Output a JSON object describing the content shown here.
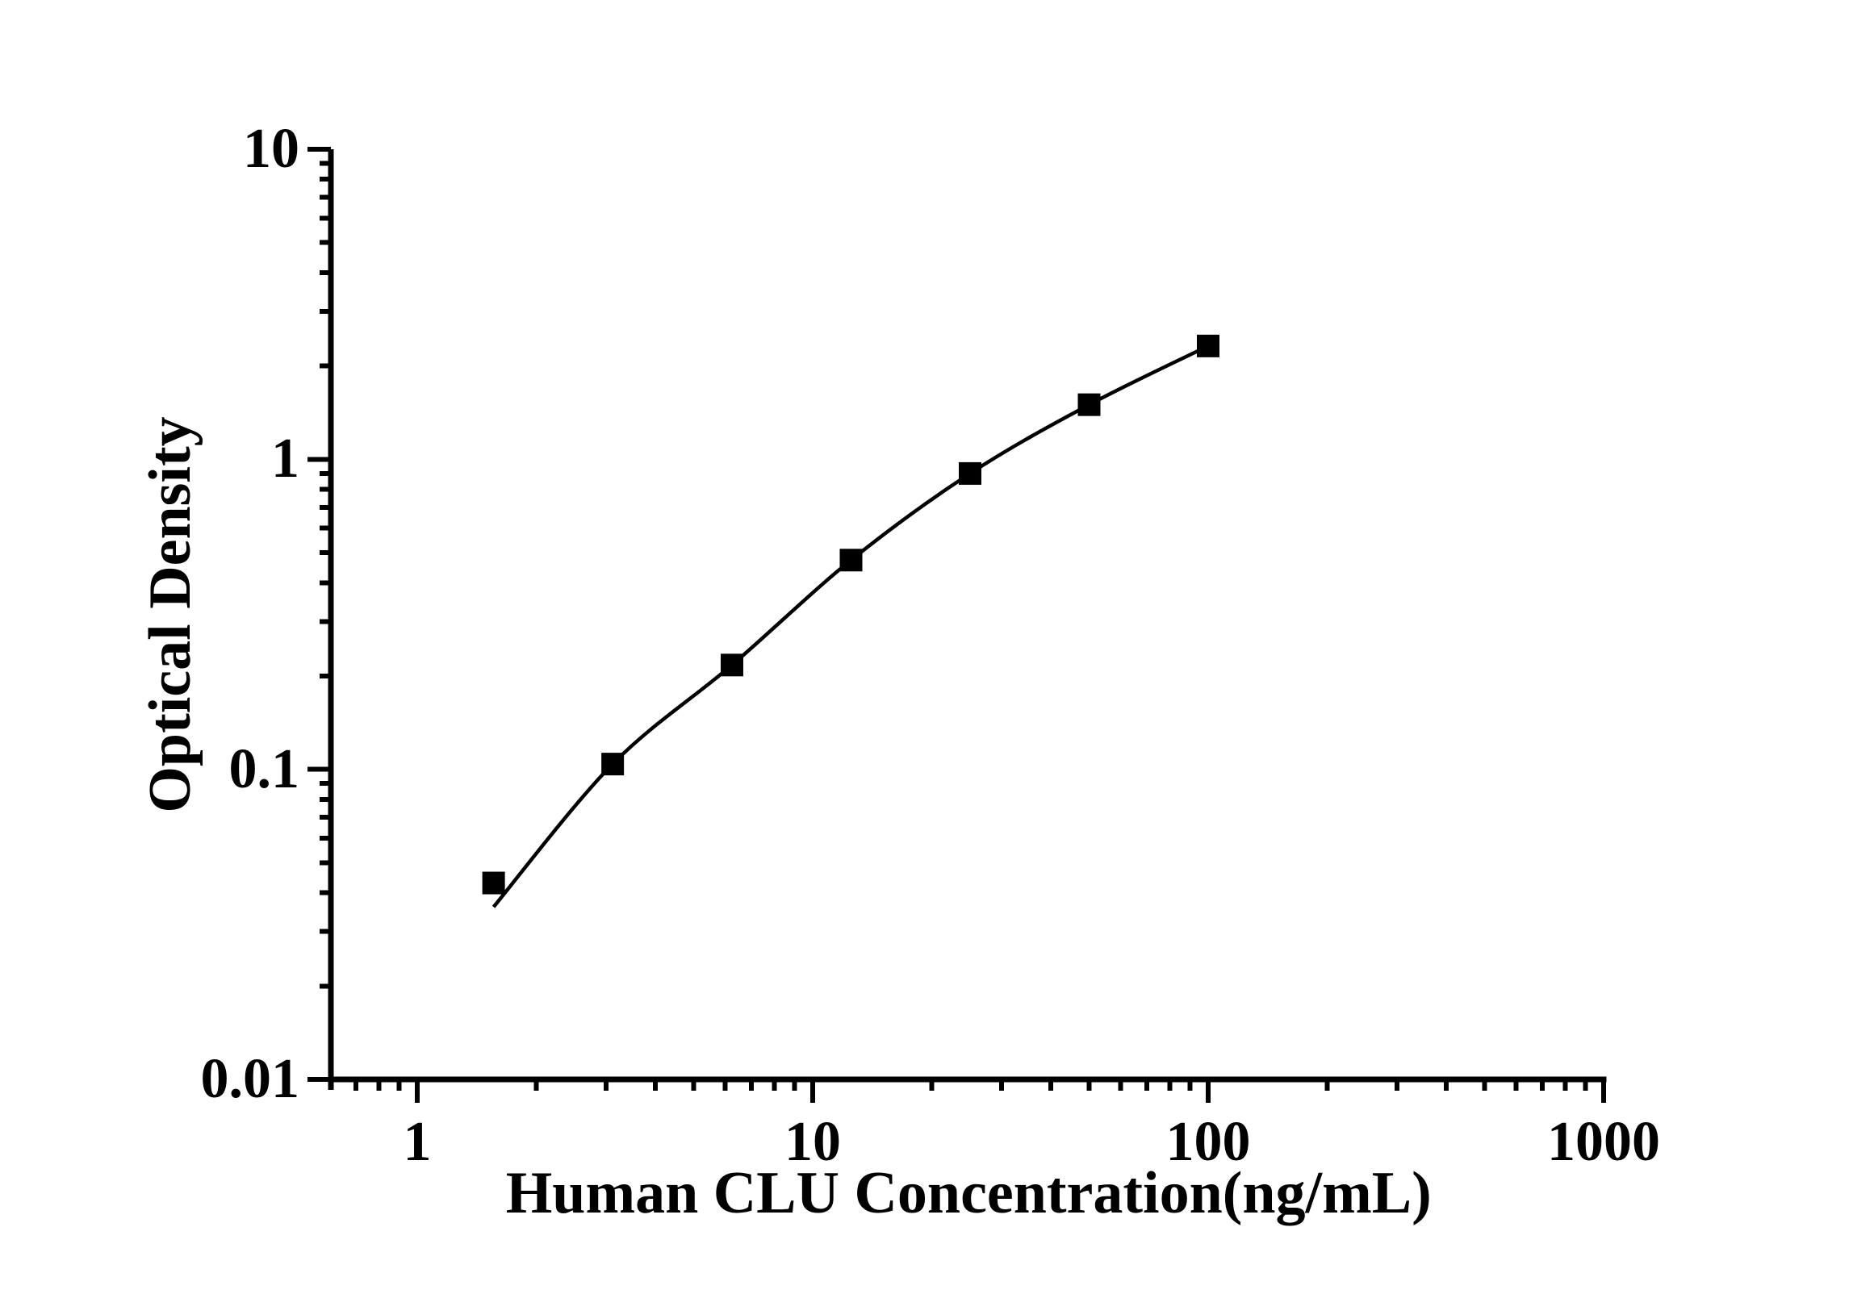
{
  "chart_data": {
    "type": "scatter",
    "title": "",
    "xlabel": "Human CLU Concentration(ng/mL)",
    "ylabel": "Optical Density",
    "x_scale": "log",
    "y_scale": "log",
    "xlim": [
      0.61,
      1000
    ],
    "ylim": [
      0.01,
      10
    ],
    "grid": false,
    "legend": "none",
    "x_ticks": [
      {
        "value": 1,
        "label": "1"
      },
      {
        "value": 10,
        "label": "10"
      },
      {
        "value": 100,
        "label": "100"
      },
      {
        "value": 1000,
        "label": "1000"
      }
    ],
    "y_ticks": [
      {
        "value": 0.01,
        "label": "0.01"
      },
      {
        "value": 0.1,
        "label": "0.1"
      },
      {
        "value": 1,
        "label": "1"
      },
      {
        "value": 10,
        "label": "10"
      }
    ],
    "series": [
      {
        "name": "standard-curve",
        "marker": "filled-square",
        "line": "smooth-fit",
        "points": [
          {
            "x": 1.56,
            "y": 0.043
          },
          {
            "x": 3.12,
            "y": 0.104
          },
          {
            "x": 6.25,
            "y": 0.217
          },
          {
            "x": 12.5,
            "y": 0.473
          },
          {
            "x": 25,
            "y": 0.9
          },
          {
            "x": 50,
            "y": 1.5
          },
          {
            "x": 100,
            "y": 2.32
          }
        ],
        "fit_curve_start": {
          "x": 1.56,
          "y": 0.036
        }
      }
    ]
  },
  "colors": {
    "background": "#ffffff",
    "axis": "#000000",
    "text": "#000000",
    "marker": "#000000",
    "curve": "#000000"
  }
}
